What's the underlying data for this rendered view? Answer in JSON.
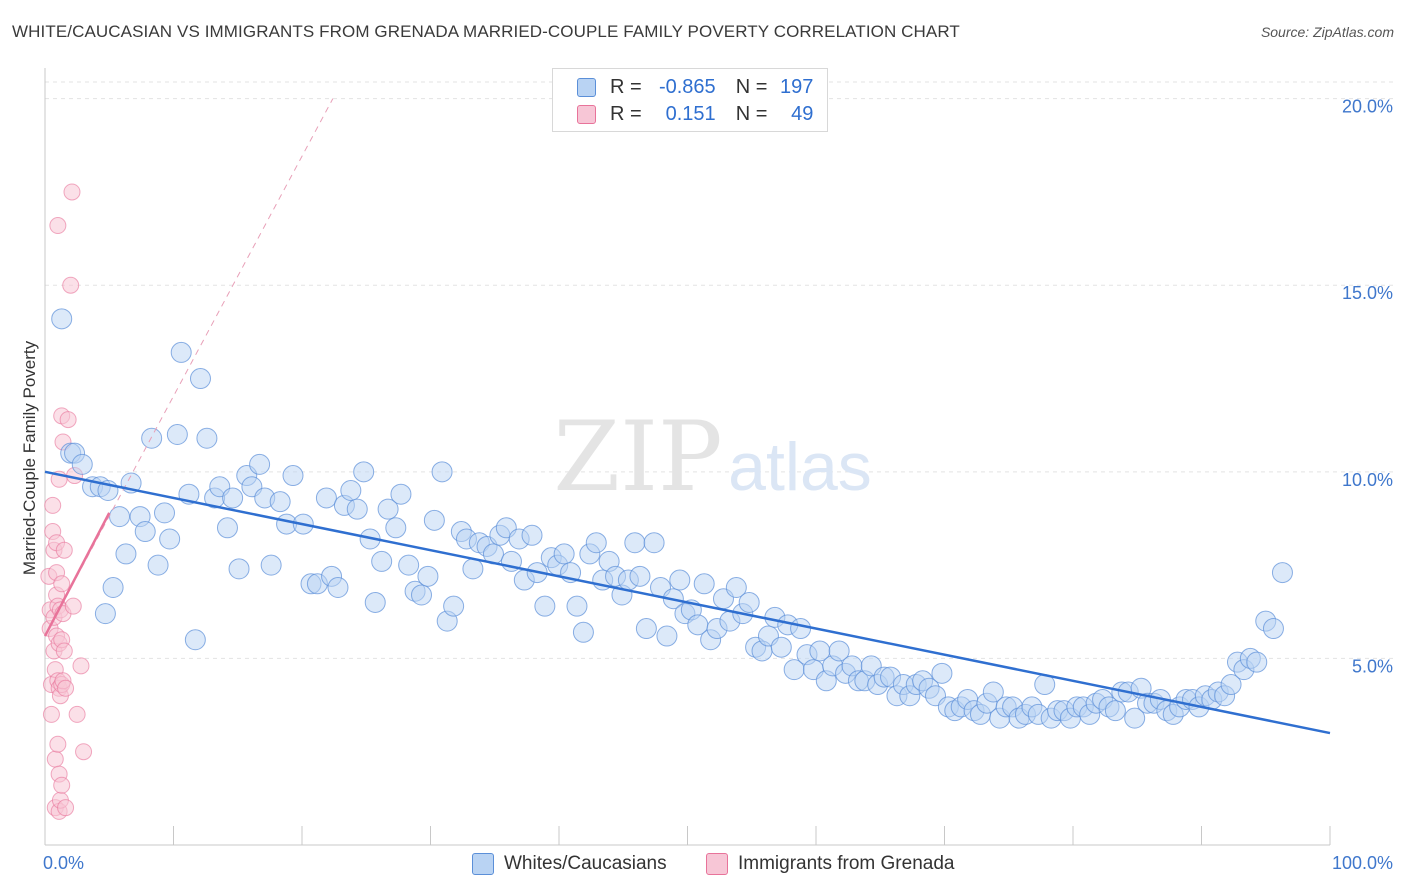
{
  "title": "WHITE/CAUCASIAN VS IMMIGRANTS FROM GRENADA MARRIED-COUPLE FAMILY POVERTY CORRELATION CHART",
  "source": "Source: ZipAtlas.com",
  "watermark": {
    "zip": "ZIP",
    "atlas": "atlas"
  },
  "colors": {
    "blue": "#5b8fd8",
    "blue_fill": "#b9d3f3",
    "blue_line": "#2f6fd0",
    "pink": "#e8739a",
    "pink_fill": "#f7c6d6",
    "axis_text": "#3f77cc"
  },
  "legend": {
    "rows": [
      {
        "r_label": "R =",
        "r_value": "-0.865",
        "n_label": "N =",
        "n_value": "197"
      },
      {
        "r_label": "R =",
        "r_value": "0.151",
        "n_label": "N =",
        "n_value": "49"
      }
    ]
  },
  "bottom_legend": [
    {
      "label": "Whites/Caucasians"
    },
    {
      "label": "Immigrants from Grenada"
    }
  ],
  "chart_data": {
    "type": "scatter",
    "title": "WHITE/CAUCASIAN VS IMMIGRANTS FROM GRENADA MARRIED-COUPLE FAMILY POVERTY CORRELATION CHART",
    "xlabel": "",
    "ylabel": "Married-Couple Family Poverty",
    "xlim": [
      0,
      100
    ],
    "ylim": [
      0,
      20.5
    ],
    "x_tick_labels": [
      "0.0%",
      "100.0%"
    ],
    "y_ticks": [
      5,
      10,
      15,
      20
    ],
    "y_tick_labels": [
      "5.0%",
      "10.0%",
      "15.0%",
      "20.0%"
    ],
    "grid": true,
    "legend_position": "top-center",
    "series": [
      {
        "name": "Whites/Caucasians",
        "color": "#5b8fd8",
        "trend": {
          "x": [
            0,
            100
          ],
          "y": [
            10.0,
            3.0
          ]
        },
        "points": [
          [
            1.3,
            14.1
          ],
          [
            2.0,
            10.5
          ],
          [
            2.3,
            10.5
          ],
          [
            2.9,
            10.2
          ],
          [
            3.7,
            9.6
          ],
          [
            4.3,
            9.6
          ],
          [
            4.7,
            6.2
          ],
          [
            4.9,
            9.5
          ],
          [
            5.3,
            6.9
          ],
          [
            5.8,
            8.8
          ],
          [
            6.3,
            7.8
          ],
          [
            6.7,
            9.7
          ],
          [
            7.4,
            8.8
          ],
          [
            7.8,
            8.4
          ],
          [
            8.3,
            10.9
          ],
          [
            8.8,
            7.5
          ],
          [
            9.3,
            8.9
          ],
          [
            9.7,
            8.2
          ],
          [
            10.3,
            11.0
          ],
          [
            10.6,
            13.2
          ],
          [
            11.2,
            9.4
          ],
          [
            11.7,
            5.5
          ],
          [
            12.1,
            12.5
          ],
          [
            12.6,
            10.9
          ],
          [
            13.2,
            9.3
          ],
          [
            13.6,
            9.6
          ],
          [
            14.2,
            8.5
          ],
          [
            14.6,
            9.3
          ],
          [
            15.1,
            7.4
          ],
          [
            15.7,
            9.9
          ],
          [
            16.1,
            9.6
          ],
          [
            16.7,
            10.2
          ],
          [
            17.1,
            9.3
          ],
          [
            17.6,
            7.5
          ],
          [
            18.3,
            9.2
          ],
          [
            18.8,
            8.6
          ],
          [
            19.3,
            9.9
          ],
          [
            20.1,
            8.6
          ],
          [
            20.7,
            7.0
          ],
          [
            21.2,
            7.0
          ],
          [
            21.9,
            9.3
          ],
          [
            22.3,
            7.2
          ],
          [
            22.8,
            6.9
          ],
          [
            23.3,
            9.1
          ],
          [
            23.8,
            9.5
          ],
          [
            24.3,
            9.0
          ],
          [
            24.8,
            10.0
          ],
          [
            25.3,
            8.2
          ],
          [
            25.7,
            6.5
          ],
          [
            26.2,
            7.6
          ],
          [
            26.7,
            9.0
          ],
          [
            27.3,
            8.5
          ],
          [
            27.7,
            9.4
          ],
          [
            28.3,
            7.5
          ],
          [
            28.8,
            6.8
          ],
          [
            29.3,
            6.7
          ],
          [
            29.8,
            7.2
          ],
          [
            30.3,
            8.7
          ],
          [
            30.9,
            10.0
          ],
          [
            31.3,
            6.0
          ],
          [
            31.8,
            6.4
          ],
          [
            32.4,
            8.4
          ],
          [
            32.8,
            8.2
          ],
          [
            33.3,
            7.4
          ],
          [
            33.8,
            8.1
          ],
          [
            34.4,
            8.0
          ],
          [
            34.9,
            7.8
          ],
          [
            35.4,
            8.3
          ],
          [
            35.9,
            8.5
          ],
          [
            36.3,
            7.6
          ],
          [
            36.9,
            8.2
          ],
          [
            37.3,
            7.1
          ],
          [
            37.9,
            8.3
          ],
          [
            38.3,
            7.3
          ],
          [
            38.9,
            6.4
          ],
          [
            39.4,
            7.7
          ],
          [
            39.9,
            7.5
          ],
          [
            40.4,
            7.8
          ],
          [
            40.9,
            7.3
          ],
          [
            41.4,
            6.4
          ],
          [
            41.9,
            5.7
          ],
          [
            42.4,
            7.8
          ],
          [
            42.9,
            8.1
          ],
          [
            43.4,
            7.1
          ],
          [
            43.9,
            7.6
          ],
          [
            44.4,
            7.2
          ],
          [
            44.9,
            6.7
          ],
          [
            45.4,
            7.1
          ],
          [
            45.9,
            8.1
          ],
          [
            46.3,
            7.2
          ],
          [
            46.8,
            5.8
          ],
          [
            47.4,
            8.1
          ],
          [
            47.9,
            6.9
          ],
          [
            48.4,
            5.6
          ],
          [
            48.9,
            6.6
          ],
          [
            49.4,
            7.1
          ],
          [
            49.8,
            6.2
          ],
          [
            50.3,
            6.3
          ],
          [
            50.8,
            5.9
          ],
          [
            51.3,
            7.0
          ],
          [
            51.8,
            5.5
          ],
          [
            52.3,
            5.8
          ],
          [
            52.8,
            6.6
          ],
          [
            53.3,
            6.0
          ],
          [
            53.8,
            6.9
          ],
          [
            54.3,
            6.2
          ],
          [
            54.8,
            6.5
          ],
          [
            55.3,
            5.3
          ],
          [
            55.8,
            5.2
          ],
          [
            56.3,
            5.6
          ],
          [
            56.8,
            6.1
          ],
          [
            57.3,
            5.3
          ],
          [
            57.8,
            5.9
          ],
          [
            58.3,
            4.7
          ],
          [
            58.8,
            5.8
          ],
          [
            59.3,
            5.1
          ],
          [
            59.8,
            4.7
          ],
          [
            60.3,
            5.2
          ],
          [
            60.8,
            4.4
          ],
          [
            61.3,
            4.8
          ],
          [
            61.8,
            5.2
          ],
          [
            62.3,
            4.6
          ],
          [
            62.8,
            4.8
          ],
          [
            63.3,
            4.4
          ],
          [
            63.8,
            4.4
          ],
          [
            64.3,
            4.8
          ],
          [
            64.8,
            4.3
          ],
          [
            65.3,
            4.5
          ],
          [
            65.8,
            4.5
          ],
          [
            66.3,
            4.0
          ],
          [
            66.8,
            4.3
          ],
          [
            67.3,
            4.0
          ],
          [
            67.8,
            4.3
          ],
          [
            68.3,
            4.4
          ],
          [
            68.8,
            4.2
          ],
          [
            69.3,
            4.0
          ],
          [
            69.8,
            4.6
          ],
          [
            70.3,
            3.7
          ],
          [
            70.8,
            3.6
          ],
          [
            71.3,
            3.7
          ],
          [
            71.8,
            3.9
          ],
          [
            72.3,
            3.6
          ],
          [
            72.8,
            3.5
          ],
          [
            73.3,
            3.8
          ],
          [
            73.8,
            4.1
          ],
          [
            74.3,
            3.4
          ],
          [
            74.8,
            3.7
          ],
          [
            75.3,
            3.7
          ],
          [
            75.8,
            3.4
          ],
          [
            76.3,
            3.5
          ],
          [
            76.8,
            3.7
          ],
          [
            77.3,
            3.5
          ],
          [
            77.8,
            4.3
          ],
          [
            78.3,
            3.4
          ],
          [
            78.8,
            3.6
          ],
          [
            79.3,
            3.6
          ],
          [
            79.8,
            3.4
          ],
          [
            80.3,
            3.7
          ],
          [
            80.8,
            3.7
          ],
          [
            81.3,
            3.5
          ],
          [
            81.8,
            3.8
          ],
          [
            82.3,
            3.9
          ],
          [
            82.8,
            3.7
          ],
          [
            83.3,
            3.6
          ],
          [
            83.8,
            4.1
          ],
          [
            84.3,
            4.1
          ],
          [
            84.8,
            3.4
          ],
          [
            85.3,
            4.2
          ],
          [
            85.8,
            3.8
          ],
          [
            86.3,
            3.8
          ],
          [
            86.8,
            3.9
          ],
          [
            87.3,
            3.6
          ],
          [
            87.8,
            3.5
          ],
          [
            88.3,
            3.7
          ],
          [
            88.8,
            3.9
          ],
          [
            89.3,
            3.9
          ],
          [
            89.8,
            3.7
          ],
          [
            90.3,
            4.0
          ],
          [
            90.8,
            3.9
          ],
          [
            91.3,
            4.1
          ],
          [
            91.8,
            4.0
          ],
          [
            92.3,
            4.3
          ],
          [
            92.8,
            4.9
          ],
          [
            93.3,
            4.7
          ],
          [
            93.8,
            5.0
          ],
          [
            94.3,
            4.9
          ],
          [
            95.0,
            6.0
          ],
          [
            95.6,
            5.8
          ],
          [
            96.3,
            7.3
          ]
        ]
      },
      {
        "name": "Immigrants from Grenada",
        "color": "#e8739a",
        "trend": {
          "x": [
            0,
            5.0
          ],
          "y": [
            5.6,
            8.9
          ]
        },
        "trend_extended": {
          "x": [
            0,
            22.4
          ],
          "y": [
            5.6,
            20.0
          ]
        },
        "points": [
          [
            0.3,
            7.2
          ],
          [
            0.4,
            6.3
          ],
          [
            0.4,
            5.8
          ],
          [
            0.5,
            4.3
          ],
          [
            0.5,
            3.5
          ],
          [
            0.6,
            8.4
          ],
          [
            0.6,
            9.1
          ],
          [
            0.7,
            7.9
          ],
          [
            0.7,
            6.1
          ],
          [
            0.7,
            5.2
          ],
          [
            0.8,
            4.7
          ],
          [
            0.8,
            2.3
          ],
          [
            0.8,
            1.0
          ],
          [
            0.9,
            8.1
          ],
          [
            0.9,
            7.3
          ],
          [
            0.9,
            6.7
          ],
          [
            0.9,
            5.6
          ],
          [
            1.0,
            16.6
          ],
          [
            1.0,
            6.4
          ],
          [
            1.0,
            4.4
          ],
          [
            1.0,
            2.7
          ],
          [
            1.1,
            9.8
          ],
          [
            1.1,
            5.4
          ],
          [
            1.1,
            4.2
          ],
          [
            1.1,
            1.9
          ],
          [
            1.1,
            0.9
          ],
          [
            1.2,
            6.3
          ],
          [
            1.2,
            4.0
          ],
          [
            1.2,
            1.2
          ],
          [
            1.3,
            11.5
          ],
          [
            1.3,
            7.0
          ],
          [
            1.3,
            5.5
          ],
          [
            1.3,
            4.3
          ],
          [
            1.3,
            1.6
          ],
          [
            1.4,
            10.8
          ],
          [
            1.4,
            6.2
          ],
          [
            1.4,
            4.4
          ],
          [
            1.5,
            7.9
          ],
          [
            1.5,
            5.2
          ],
          [
            1.6,
            4.2
          ],
          [
            1.6,
            1.0
          ],
          [
            1.8,
            11.4
          ],
          [
            2.0,
            15.0
          ],
          [
            2.1,
            17.5
          ],
          [
            2.2,
            6.4
          ],
          [
            2.3,
            9.9
          ],
          [
            2.5,
            3.5
          ],
          [
            2.8,
            4.8
          ],
          [
            3.0,
            2.5
          ]
        ]
      }
    ]
  }
}
